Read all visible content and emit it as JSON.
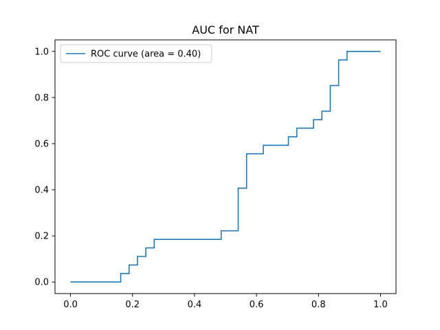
{
  "chart_data": {
    "type": "line",
    "title": "AUC for NAT",
    "xlabel": "",
    "ylabel": "",
    "xlim": [
      -0.05,
      1.05
    ],
    "ylim": [
      -0.05,
      1.05
    ],
    "x_ticks": [
      0.0,
      0.2,
      0.4,
      0.6,
      0.8,
      1.0
    ],
    "x_tick_labels": [
      "0.0",
      "0.2",
      "0.4",
      "0.6",
      "0.8",
      "1.0"
    ],
    "y_ticks": [
      0.0,
      0.2,
      0.4,
      0.6,
      0.8,
      1.0
    ],
    "y_tick_labels": [
      "0.0",
      "0.2",
      "0.4",
      "0.6",
      "0.8",
      "1.0"
    ],
    "grid": false,
    "legend_position": "upper-left",
    "series": [
      {
        "name": "ROC curve (area = 0.40)",
        "color": "#1f77b4",
        "step": true,
        "x": [
          0.0,
          0.162,
          0.162,
          0.189,
          0.189,
          0.216,
          0.216,
          0.243,
          0.243,
          0.27,
          0.27,
          0.486,
          0.486,
          0.541,
          0.541,
          0.568,
          0.568,
          0.622,
          0.622,
          0.703,
          0.703,
          0.73,
          0.73,
          0.784,
          0.784,
          0.811,
          0.811,
          0.838,
          0.838,
          0.865,
          0.865,
          0.892,
          0.892,
          1.0
        ],
        "y": [
          0.0,
          0.0,
          0.037,
          0.037,
          0.074,
          0.074,
          0.111,
          0.111,
          0.148,
          0.148,
          0.185,
          0.185,
          0.222,
          0.222,
          0.407,
          0.407,
          0.556,
          0.556,
          0.593,
          0.593,
          0.63,
          0.63,
          0.667,
          0.667,
          0.704,
          0.704,
          0.741,
          0.741,
          0.852,
          0.852,
          0.963,
          0.963,
          1.0,
          1.0
        ]
      }
    ]
  }
}
